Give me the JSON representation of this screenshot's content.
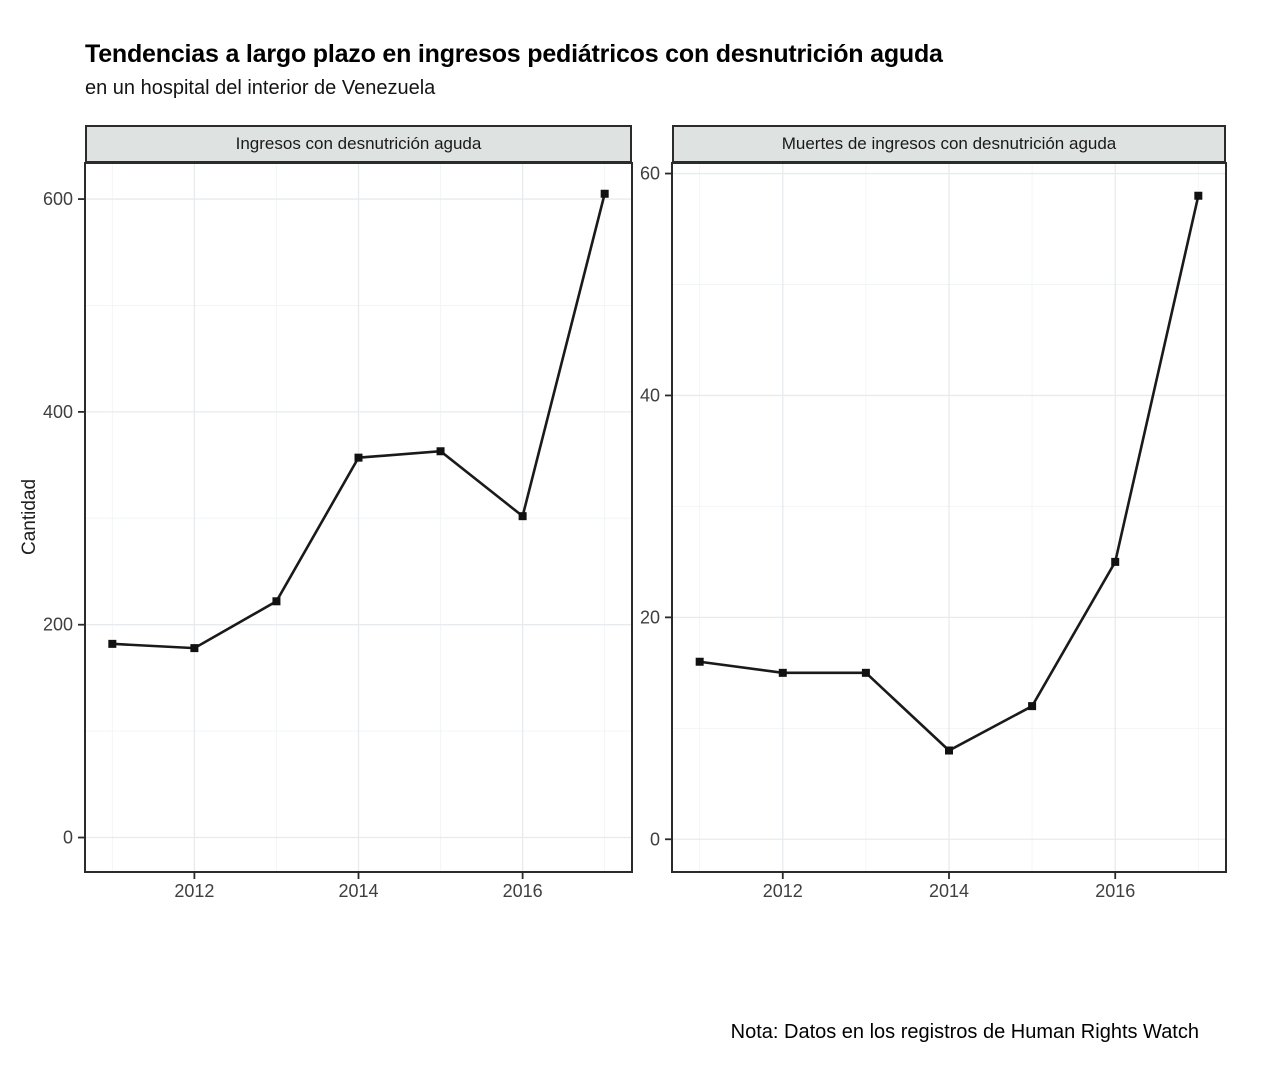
{
  "header": {
    "title": "Tendencias a largo plazo en ingresos pediátricos con desnutrición aguda",
    "subtitle": "en un hospital del interior de Venezuela"
  },
  "axes": {
    "y_label": "Cantidad"
  },
  "footer": {
    "note": "Nota: Datos en los registros de Human Rights Watch"
  },
  "colors": {
    "line": "#1a1a1a",
    "marker": "#111111",
    "panel_border": "#2b2b2b",
    "strip_bg": "#dee2e0",
    "strip_text": "#1a1a1a",
    "grid_major": "#e7ebed",
    "grid_minor": "#f2f5f6",
    "tick_label": "#3f3f3f",
    "tick_mark": "#2b2b2b"
  },
  "chart_data": [
    {
      "type": "line",
      "title": "Ingresos con desnutrición aguda",
      "x": [
        2011,
        2012,
        2013,
        2014,
        2015,
        2016,
        2017
      ],
      "values": [
        182,
        178,
        222,
        357,
        363,
        302,
        605
      ],
      "x_ticks": [
        2012,
        2014,
        2016
      ],
      "x_minor": [
        2011,
        2013,
        2015,
        2017
      ],
      "y_ticks": [
        0,
        200,
        400,
        600
      ],
      "y_minor": [
        100,
        300,
        500
      ],
      "xlim": [
        2010.667,
        2017.333
      ],
      "ylim": [
        -32.4,
        633.9
      ],
      "xlabel": "",
      "ylabel": "Cantidad",
      "grid": true,
      "legend": false
    },
    {
      "type": "line",
      "title": "Muertes de ingresos con desnutrición aguda",
      "x": [
        2011,
        2012,
        2013,
        2014,
        2015,
        2016,
        2017
      ],
      "values": [
        16,
        15,
        15,
        8,
        12,
        25,
        58
      ],
      "x_ticks": [
        2012,
        2014,
        2016
      ],
      "x_minor": [
        2011,
        2013,
        2015,
        2017
      ],
      "y_ticks": [
        0,
        20,
        40,
        60
      ],
      "y_minor": [
        10,
        30,
        50
      ],
      "xlim": [
        2010.667,
        2017.333
      ],
      "ylim": [
        -2.95,
        60.95
      ],
      "xlabel": "",
      "ylabel": "Cantidad",
      "grid": true,
      "legend": false
    }
  ]
}
